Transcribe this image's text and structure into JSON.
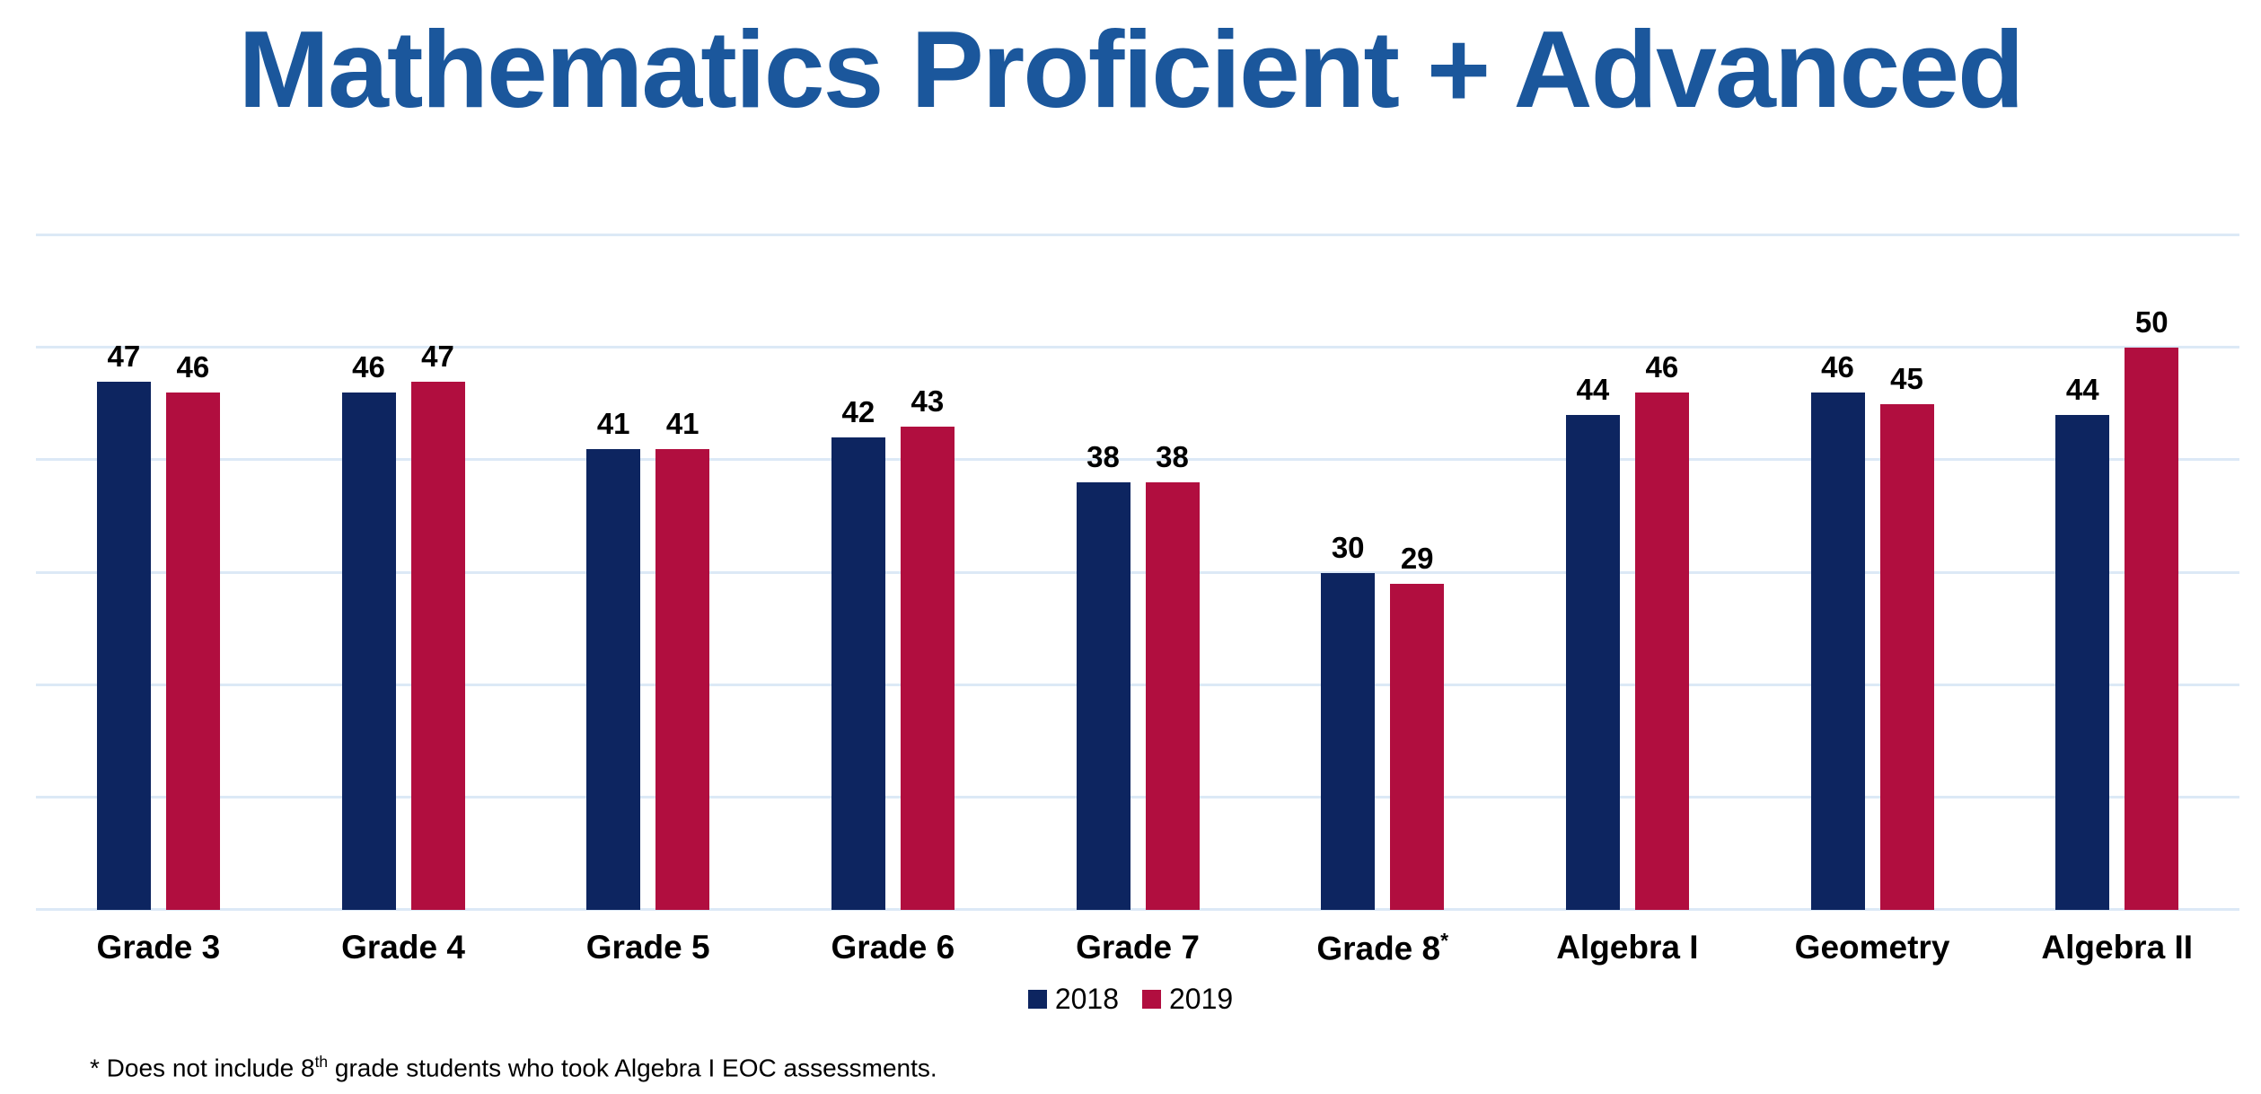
{
  "title": {
    "text": "Mathematics Proficient + Advanced",
    "color": "#1b579c"
  },
  "chart_data": {
    "type": "bar",
    "title": "Mathematics Proficient + Advanced",
    "categories": [
      "Grade 3",
      "Grade 4",
      "Grade 5",
      "Grade 6",
      "Grade 7",
      "Grade 8*",
      "Algebra I",
      "Geometry",
      "Algebra II"
    ],
    "series": [
      {
        "name": "2018",
        "color": "#0d2560",
        "values": [
          47,
          46,
          41,
          42,
          38,
          30,
          44,
          46,
          44
        ]
      },
      {
        "name": "2019",
        "color": "#b10e3f",
        "values": [
          46,
          47,
          41,
          43,
          38,
          29,
          46,
          45,
          50
        ]
      }
    ],
    "xlabel": "",
    "ylabel": "",
    "ylim": [
      0,
      60
    ],
    "gridline_values": [
      0,
      10,
      20,
      30,
      40,
      50,
      60
    ],
    "grid": true,
    "grid_color": "#dce9f6",
    "y_axis_labels": false,
    "data_labels": true,
    "legend_position": "bottom-center"
  },
  "footnote": {
    "pre": "* Does not include 8",
    "sup": "th",
    "post": " grade students who took Algebra I EOC assessments."
  }
}
